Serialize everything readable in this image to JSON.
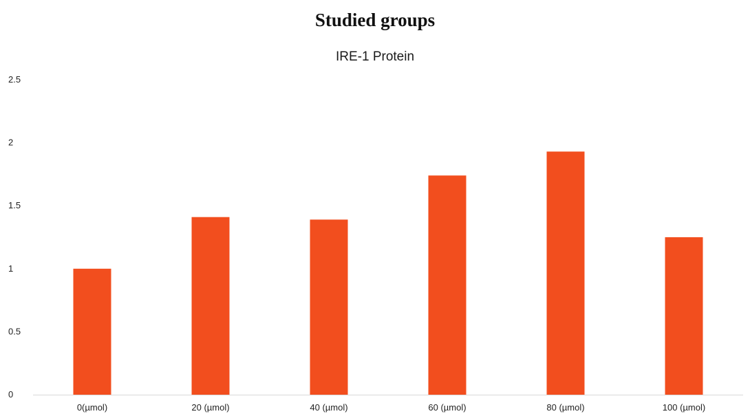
{
  "figure_title": "Studied groups",
  "chart_data": {
    "type": "bar",
    "title": "IRE-1 Protein",
    "categories": [
      "0(µmol)",
      "20 (µmol)",
      "40 (µmol)",
      "60 (µmol)",
      "80 (µmol)",
      "100 (µmol)"
    ],
    "values": [
      1.0,
      1.41,
      1.39,
      1.74,
      1.93,
      1.25
    ],
    "ylim": [
      0,
      2.5
    ],
    "yticks": [
      0,
      0.5,
      1,
      1.5,
      2,
      2.5
    ],
    "ytick_labels": [
      "0",
      "0.5",
      "1",
      "1.5",
      "2",
      "2.5"
    ],
    "bar_color": "#f24e1e",
    "axis_color": "#d9d9d9",
    "grid": false,
    "legend": "none"
  }
}
